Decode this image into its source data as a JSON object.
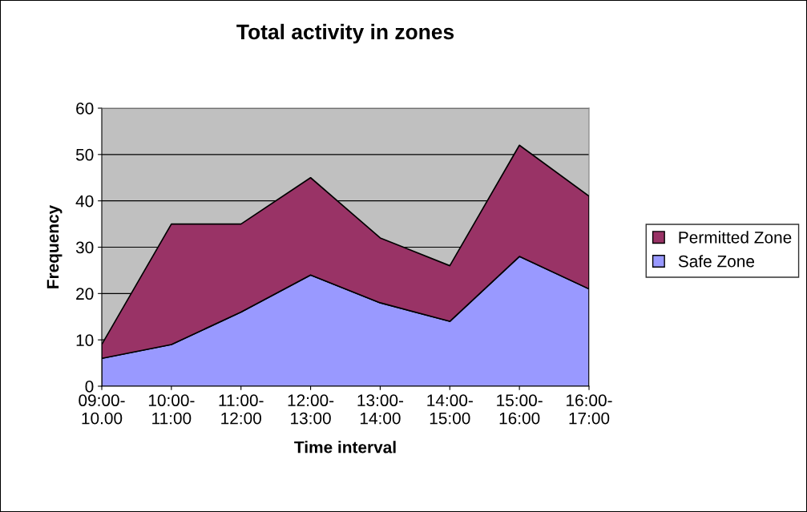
{
  "chart_data": {
    "type": "area",
    "title": "Total activity in zones",
    "xlabel": "Time interval",
    "ylabel": "Frequency",
    "categories": [
      "09:00-\n10.00",
      "10:00-\n11:00",
      "11:00-\n12:00",
      "12:00-\n13:00",
      "13:00-\n14:00",
      "14:00-\n15:00",
      "15:00-\n16:00",
      "16:00-\n17:00"
    ],
    "stacked": true,
    "series": [
      {
        "name": "Safe Zone",
        "color": "#9999ff",
        "values": [
          6,
          9,
          16,
          24,
          18,
          14,
          28,
          21
        ]
      },
      {
        "name": "Permitted Zone",
        "color": "#993366",
        "values": [
          3,
          26,
          19,
          21,
          14,
          12,
          24,
          20
        ]
      }
    ],
    "ylim": [
      0,
      60
    ],
    "yticks": [
      0,
      10,
      20,
      30,
      40,
      50,
      60
    ],
    "grid": "y",
    "legend": "right"
  }
}
